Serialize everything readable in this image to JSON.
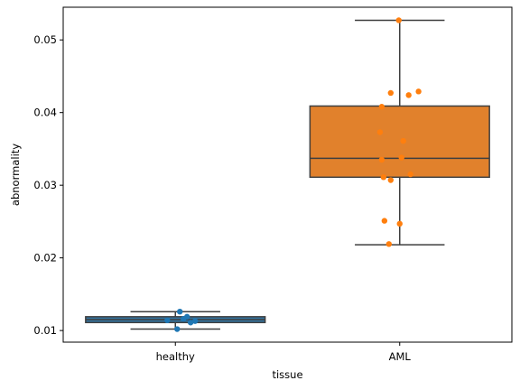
{
  "chart_data": {
    "type": "box",
    "title": "",
    "xlabel": "tissue",
    "ylabel": "abnormality",
    "categories": [
      "healthy",
      "AML"
    ],
    "ylim": [
      0.0084,
      0.0545
    ],
    "yticks": [
      0.01,
      0.02,
      0.03,
      0.04,
      0.05
    ],
    "ytick_labels": [
      "0.01",
      "0.02",
      "0.03",
      "0.04",
      "0.05"
    ],
    "grid": false,
    "legend": "none",
    "colors": {
      "healthy": "#1f77b4",
      "AML": "#ff7f0e",
      "healthy_box": "#3274a1",
      "AML_box": "#e1812c",
      "edge": "#3f3f3f"
    },
    "boxes": [
      {
        "category": "healthy",
        "whisker_low": 0.0102,
        "q1": 0.0111,
        "median": 0.0115,
        "q3": 0.0119,
        "whisker_high": 0.0126
      },
      {
        "category": "AML",
        "whisker_low": 0.0218,
        "q1": 0.0311,
        "median": 0.0337,
        "q3": 0.0409,
        "whisker_high": 0.0527
      }
    ],
    "points": [
      {
        "category": "healthy",
        "jitter": 0.05,
        "y": 0.0126
      },
      {
        "category": "healthy",
        "jitter": 0.13,
        "y": 0.0119
      },
      {
        "category": "healthy",
        "jitter": -0.09,
        "y": 0.0114
      },
      {
        "category": "healthy",
        "jitter": 0.09,
        "y": 0.0116
      },
      {
        "category": "healthy",
        "jitter": 0.22,
        "y": 0.0113
      },
      {
        "category": "healthy",
        "jitter": 0.17,
        "y": 0.0111
      },
      {
        "category": "healthy",
        "jitter": 0.02,
        "y": 0.0102
      },
      {
        "category": "AML",
        "jitter": -0.01,
        "y": 0.0527
      },
      {
        "category": "AML",
        "jitter": 0.21,
        "y": 0.0429
      },
      {
        "category": "AML",
        "jitter": -0.1,
        "y": 0.0427
      },
      {
        "category": "AML",
        "jitter": 0.1,
        "y": 0.0424
      },
      {
        "category": "AML",
        "jitter": -0.2,
        "y": 0.0408
      },
      {
        "category": "AML",
        "jitter": -0.22,
        "y": 0.0373
      },
      {
        "category": "AML",
        "jitter": 0.04,
        "y": 0.0361
      },
      {
        "category": "AML",
        "jitter": 0.02,
        "y": 0.0338
      },
      {
        "category": "AML",
        "jitter": -0.2,
        "y": 0.0335
      },
      {
        "category": "AML",
        "jitter": 0.12,
        "y": 0.0315
      },
      {
        "category": "AML",
        "jitter": -0.18,
        "y": 0.0311
      },
      {
        "category": "AML",
        "jitter": -0.1,
        "y": 0.0307
      },
      {
        "category": "AML",
        "jitter": -0.17,
        "y": 0.0251
      },
      {
        "category": "AML",
        "jitter": 0.0,
        "y": 0.0247
      },
      {
        "category": "AML",
        "jitter": -0.12,
        "y": 0.0219
      }
    ]
  }
}
